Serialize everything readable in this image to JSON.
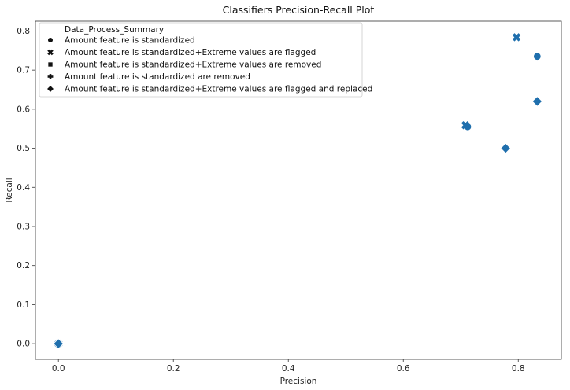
{
  "chart_data": {
    "type": "scatter",
    "title": "Classifiers Precision-Recall Plot",
    "xlabel": "Precision",
    "ylabel": "Recall",
    "xlim": [
      -0.04,
      0.875
    ],
    "ylim": [
      -0.04,
      0.825
    ],
    "xticks": [
      0.0,
      0.2,
      0.4,
      0.6,
      0.8
    ],
    "xtick_labels": [
      "0.0",
      "0.2",
      "0.4",
      "0.6",
      "0.8"
    ],
    "yticks": [
      0.0,
      0.1,
      0.2,
      0.3,
      0.4,
      0.5,
      0.6,
      0.7,
      0.8
    ],
    "ytick_labels": [
      "0.0",
      "0.1",
      "0.2",
      "0.3",
      "0.4",
      "0.5",
      "0.6",
      "0.7",
      "0.8"
    ],
    "grid": false,
    "color": "#1f6fad",
    "legend": {
      "title": "Data_Process_Summary",
      "placement": "top-left"
    },
    "series": [
      {
        "name": "Amount feature is standardized",
        "marker": "circle",
        "points": [
          {
            "x": 0.0,
            "y": 0.0
          },
          {
            "x": 0.712,
            "y": 0.555
          },
          {
            "x": 0.833,
            "y": 0.735
          }
        ]
      },
      {
        "name": "Amount feature is standardized+Extreme values are flagged",
        "marker": "x",
        "points": [
          {
            "x": 0.0,
            "y": 0.0
          },
          {
            "x": 0.708,
            "y": 0.559
          },
          {
            "x": 0.797,
            "y": 0.784
          }
        ]
      },
      {
        "name": "Amount feature is standardized+Extreme values are removed",
        "marker": "square",
        "points": [
          {
            "x": 0.0,
            "y": 0.0
          }
        ]
      },
      {
        "name": "Amount feature is standardized are removed",
        "marker": "plus",
        "points": [
          {
            "x": 0.0,
            "y": 0.0
          }
        ]
      },
      {
        "name": "Amount feature is standardized+Extreme values are flagged and replaced",
        "marker": "diamond",
        "points": [
          {
            "x": 0.0,
            "y": 0.0
          },
          {
            "x": 0.778,
            "y": 0.5
          },
          {
            "x": 0.833,
            "y": 0.62
          }
        ]
      }
    ]
  }
}
